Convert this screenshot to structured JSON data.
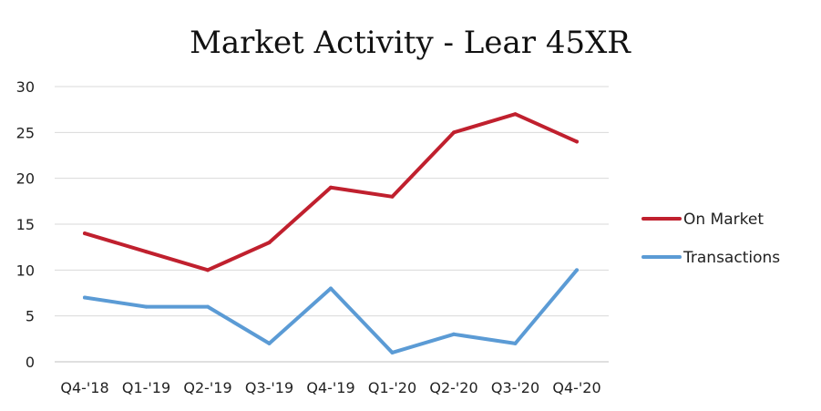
{
  "chart_data": {
    "type": "line",
    "title": "Market Activity - Lear 45XR",
    "categories": [
      "Q4-'18",
      "Q1-'19",
      "Q2-'19",
      "Q3-'19",
      "Q4-'19",
      "Q1-'20",
      "Q2-'20",
      "Q3-'20",
      "Q4-'20"
    ],
    "series": [
      {
        "name": "On Market",
        "color": "#c0202e",
        "values": [
          14,
          12,
          10,
          13,
          19,
          18,
          25,
          27,
          24
        ]
      },
      {
        "name": "Transactions",
        "color": "#5b9bd5",
        "values": [
          7,
          6,
          6,
          2,
          8,
          1,
          3,
          2,
          10
        ]
      }
    ],
    "y_ticks": [
      "0",
      "5",
      "10",
      "15",
      "20",
      "25",
      "30"
    ],
    "ylim": [
      0,
      30
    ],
    "grid": true,
    "legend": "right"
  }
}
